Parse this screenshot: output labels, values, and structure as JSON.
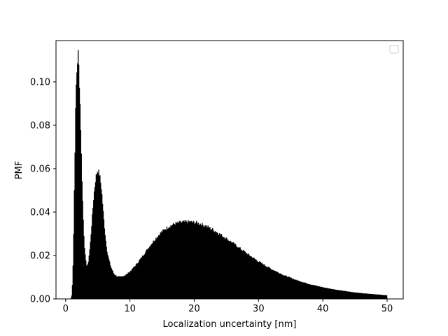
{
  "chart_data": {
    "type": "histogram",
    "title": "",
    "xlabel": "Localization uncertainty [nm]",
    "ylabel": "PMF",
    "xlim": [
      -1.5,
      52.5
    ],
    "ylim": [
      0,
      0.119
    ],
    "x_ticks": [
      0,
      10,
      20,
      30,
      40,
      50
    ],
    "x_tick_labels": [
      "0",
      "10",
      "20",
      "30",
      "40",
      "50"
    ],
    "y_ticks": [
      0,
      0.02,
      0.04,
      0.06,
      0.08,
      0.1
    ],
    "y_tick_labels": [
      "0.00",
      "0.02",
      "0.04",
      "0.06",
      "0.08",
      "0.10"
    ],
    "grid": false,
    "legend": {
      "location": "upper-right",
      "entries": []
    },
    "series": [
      {
        "color": "#000000",
        "bin_range": [
          0.8,
          50
        ],
        "points": [
          [
            0.8,
            0.0
          ],
          [
            1.0,
            0.002
          ],
          [
            1.2,
            0.02
          ],
          [
            1.4,
            0.06
          ],
          [
            1.6,
            0.095
          ],
          [
            1.8,
            0.108
          ],
          [
            1.95,
            0.113
          ],
          [
            2.1,
            0.104
          ],
          [
            2.3,
            0.085
          ],
          [
            2.5,
            0.06
          ],
          [
            2.7,
            0.04
          ],
          [
            2.9,
            0.026
          ],
          [
            3.1,
            0.018
          ],
          [
            3.3,
            0.015
          ],
          [
            3.5,
            0.016
          ],
          [
            3.8,
            0.024
          ],
          [
            4.1,
            0.036
          ],
          [
            4.4,
            0.048
          ],
          [
            4.7,
            0.056
          ],
          [
            5.0,
            0.0595
          ],
          [
            5.3,
            0.057
          ],
          [
            5.6,
            0.05
          ],
          [
            5.9,
            0.038
          ],
          [
            6.2,
            0.028
          ],
          [
            6.5,
            0.021
          ],
          [
            7.0,
            0.015
          ],
          [
            7.5,
            0.0115
          ],
          [
            8.0,
            0.0103
          ],
          [
            8.5,
            0.0101
          ],
          [
            9.0,
            0.0105
          ],
          [
            9.5,
            0.0113
          ],
          [
            10.0,
            0.0125
          ],
          [
            11.0,
            0.0158
          ],
          [
            12.0,
            0.0198
          ],
          [
            13.0,
            0.024
          ],
          [
            14.0,
            0.0278
          ],
          [
            15.0,
            0.031
          ],
          [
            16.0,
            0.0332
          ],
          [
            17.0,
            0.0346
          ],
          [
            18.0,
            0.0352
          ],
          [
            19.0,
            0.0355
          ],
          [
            20.0,
            0.0352
          ],
          [
            21.0,
            0.0345
          ],
          [
            22.0,
            0.0333
          ],
          [
            23.0,
            0.0317
          ],
          [
            24.0,
            0.0298
          ],
          [
            25.0,
            0.0278
          ],
          [
            26.0,
            0.0257
          ],
          [
            27.0,
            0.0235
          ],
          [
            28.0,
            0.0213
          ],
          [
            29.0,
            0.0192
          ],
          [
            30.0,
            0.0172
          ],
          [
            32.0,
            0.0137
          ],
          [
            34.0,
            0.0108
          ],
          [
            36.0,
            0.0085
          ],
          [
            38.0,
            0.0067
          ],
          [
            40.0,
            0.0053
          ],
          [
            42.0,
            0.0042
          ],
          [
            44.0,
            0.0033
          ],
          [
            46.0,
            0.0026
          ],
          [
            48.0,
            0.0021
          ],
          [
            50.0,
            0.0016
          ]
        ]
      }
    ]
  }
}
